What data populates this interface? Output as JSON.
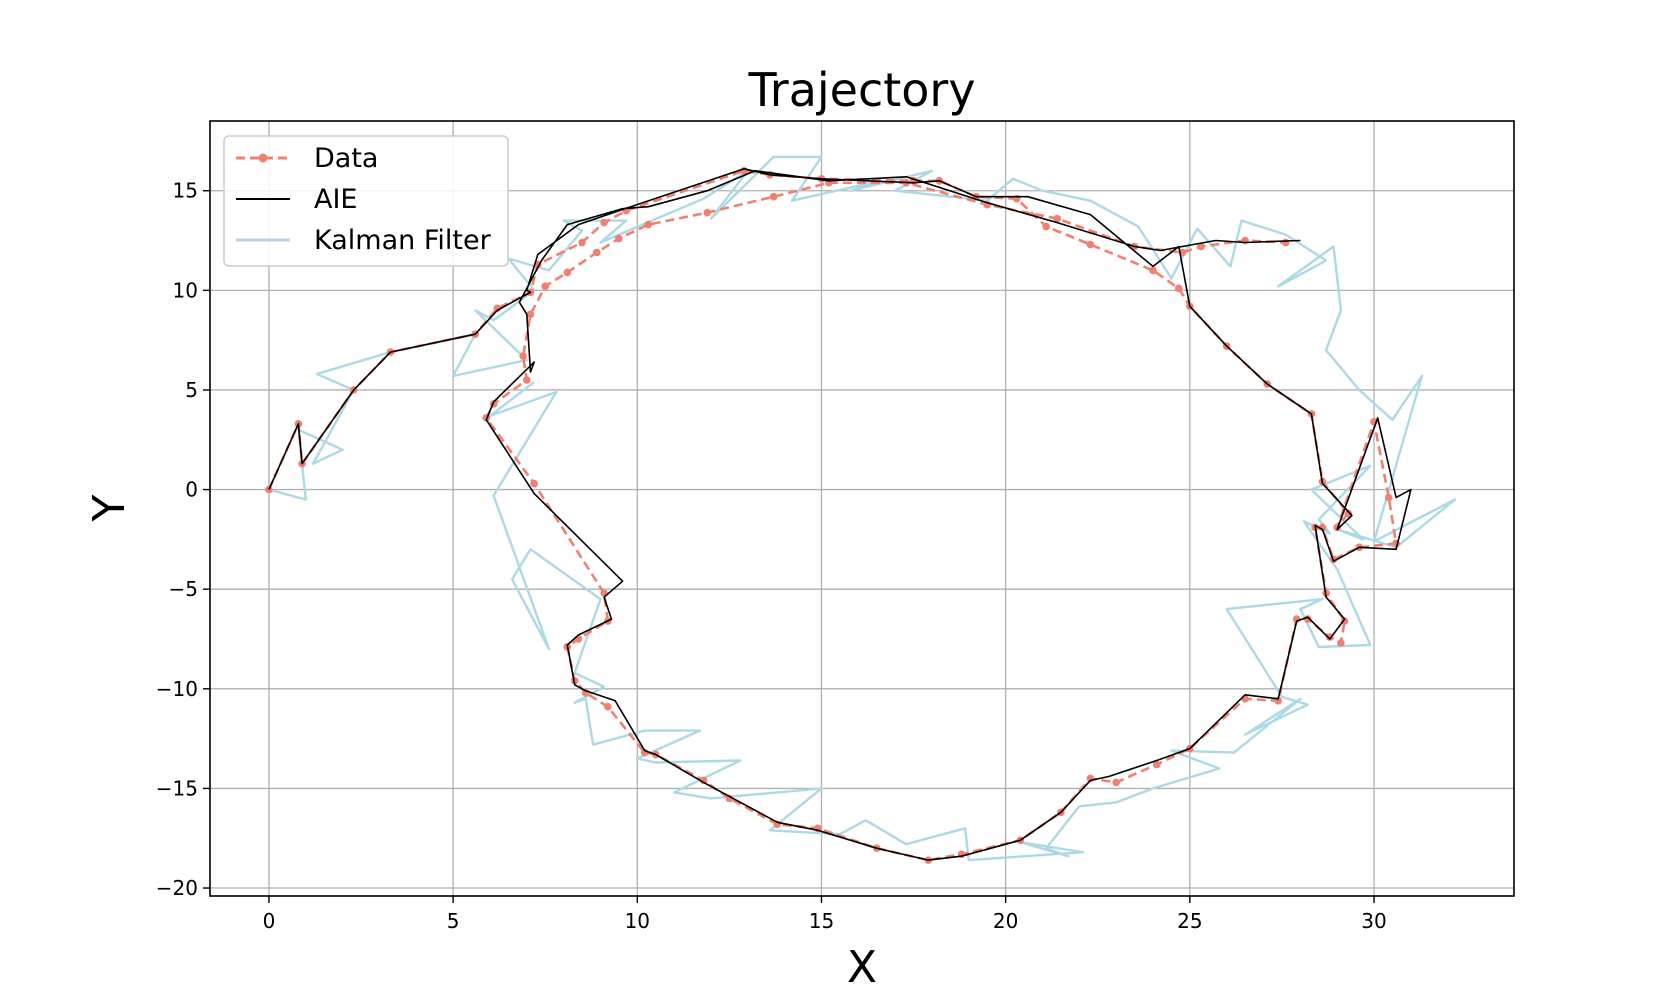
{
  "chart_data": {
    "type": "line",
    "title": "Trajectory",
    "xlabel": "X",
    "ylabel": "Y",
    "xlim": [
      -1.6,
      33.8
    ],
    "ylim": [
      -20.4,
      18.5
    ],
    "xticks": [
      0,
      5,
      10,
      15,
      20,
      25,
      30
    ],
    "yticks": [
      -20,
      -15,
      -10,
      -5,
      0,
      5,
      10,
      15
    ],
    "xtick_labels": [
      "0",
      "5",
      "10",
      "15",
      "20",
      "25",
      "30"
    ],
    "ytick_labels": [
      "−20",
      "−15",
      "−10",
      "−5",
      "0",
      "5",
      "10",
      "15"
    ],
    "grid": true,
    "legend_position": "top-left",
    "series": [
      {
        "name": "Data",
        "style": "dashed-with-markers",
        "color": "#f08070",
        "x": [
          0,
          0.8,
          0.9,
          2.3,
          3.3,
          5.6,
          6.2,
          7.1,
          7.3,
          8.5,
          9.1,
          9.7,
          12.9,
          13.6,
          15.0,
          17.5,
          18.2,
          19.2,
          20.3,
          21.1,
          22.3,
          24.0,
          24.7,
          25.0,
          26.0,
          27.1,
          28.3,
          28.6,
          29.3,
          29.0,
          30.0,
          30.4,
          30.6,
          29.6,
          28.9,
          28.6,
          28.4,
          28.7,
          29.2,
          29.1,
          28.8,
          28.2,
          27.9,
          27.4,
          26.5,
          25.0,
          24.1,
          23.0,
          22.3,
          21.5,
          20.4,
          18.8,
          17.9,
          16.5,
          14.9,
          13.8,
          12.5,
          11.8,
          10.5,
          10.2,
          9.2,
          8.6,
          8.3,
          8.1,
          8.4,
          9.2,
          9.1,
          7.2,
          5.9,
          6.1,
          7.0,
          6.9,
          7.1,
          7.5,
          8.1,
          8.9,
          9.5,
          10.3,
          11.9,
          13.7,
          15.2,
          17.3,
          19.5,
          21.4,
          23.5,
          24.8,
          25.3,
          26.5,
          27.6
        ],
        "y": [
          0,
          3.3,
          1.3,
          5.0,
          6.9,
          7.8,
          9.1,
          9.9,
          11.3,
          12.4,
          13.4,
          14.0,
          16.0,
          15.8,
          15.6,
          15.5,
          15.5,
          14.7,
          14.6,
          13.2,
          12.3,
          11.0,
          10.1,
          9.2,
          7.2,
          5.3,
          3.8,
          0.4,
          -1.2,
          -1.9,
          3.4,
          -0.4,
          -2.7,
          -2.9,
          -3.5,
          -1.9,
          -1.9,
          -5.2,
          -6.6,
          -7.7,
          -7.4,
          -6.5,
          -6.5,
          -10.6,
          -10.5,
          -13.0,
          -13.8,
          -14.7,
          -14.5,
          -16.2,
          -17.6,
          -18.3,
          -18.6,
          -18.0,
          -17.0,
          -16.8,
          -15.5,
          -14.6,
          -13.3,
          -13.2,
          -10.9,
          -10.2,
          -9.6,
          -7.9,
          -7.5,
          -6.6,
          -5.2,
          0.3,
          3.6,
          4.3,
          5.5,
          6.7,
          8.8,
          10.2,
          10.9,
          11.9,
          12.6,
          13.3,
          13.9,
          14.7,
          15.4,
          15.4,
          14.3,
          13.6,
          12.2,
          11.9,
          12.2,
          12.5,
          12.4
        ]
      },
      {
        "name": "AIE",
        "style": "solid",
        "color": "#000000",
        "x": [
          0,
          0.8,
          0.9,
          2.3,
          3.3,
          5.6,
          6.2,
          7.1,
          7.0,
          7.3,
          8.4,
          9.5,
          12.9,
          13.6,
          15.0,
          17.5,
          18.2,
          19.2,
          20.6,
          22.3,
          24.0,
          24.7,
          25.0,
          26.0,
          27.1,
          28.3,
          28.6,
          29.4,
          29.0,
          30.1,
          30.6,
          31.0,
          30.6,
          29.6,
          28.9,
          28.6,
          28.4,
          28.7,
          29.2,
          28.8,
          28.2,
          27.9,
          27.4,
          26.5,
          25.0,
          24.1,
          22.8,
          22.3,
          21.5,
          20.4,
          18.8,
          17.9,
          16.5,
          14.9,
          13.8,
          12.5,
          11.8,
          10.5,
          10.2,
          9.4,
          8.6,
          8.3,
          8.1,
          8.4,
          9.3,
          9.1,
          9.6,
          7.2,
          5.9,
          6.1,
          7.2,
          7.1,
          7.0,
          6.8,
          7.4,
          8.1,
          9.6,
          10.3,
          11.9,
          13.2,
          15.2,
          17.3,
          19.5,
          21.4,
          23.5,
          24.2,
          25.7,
          26.5,
          28.0
        ],
        "y": [
          0,
          3.3,
          1.3,
          5.0,
          6.9,
          7.8,
          9.0,
          9.9,
          10.0,
          11.8,
          13.3,
          14.0,
          16.1,
          15.8,
          15.6,
          15.4,
          15.5,
          14.7,
          14.7,
          13.8,
          11.2,
          12.2,
          9.2,
          7.2,
          5.3,
          3.8,
          0.3,
          -1.3,
          -2.0,
          3.6,
          -0.4,
          0.0,
          -3.0,
          -2.9,
          -3.6,
          -2.0,
          -1.8,
          -5.4,
          -6.5,
          -7.5,
          -6.4,
          -6.6,
          -10.5,
          -10.3,
          -13.0,
          -13.6,
          -14.4,
          -14.6,
          -16.2,
          -17.6,
          -18.4,
          -18.6,
          -18.0,
          -17.1,
          -16.7,
          -15.4,
          -14.7,
          -13.3,
          -13.1,
          -10.6,
          -10.1,
          -9.8,
          -7.8,
          -7.3,
          -6.5,
          -5.4,
          -4.6,
          -0.2,
          3.5,
          4.4,
          6.4,
          5.9,
          8.8,
          9.4,
          11.5,
          13.3,
          14.1,
          14.2,
          15.0,
          16.0,
          15.5,
          15.7,
          14.4,
          13.4,
          12.2,
          12.0,
          12.5,
          12.4,
          12.5
        ]
      },
      {
        "name": "Kalman Filter",
        "style": "solid",
        "color": "#add8e6",
        "x": [
          0,
          1.0,
          0.8,
          2.0,
          1.2,
          2.3,
          1.3,
          3.3,
          5.6,
          5.0,
          7.0,
          5.6,
          6.1,
          7.2,
          6.5,
          7.6,
          8.5,
          8.0,
          9.7,
          9.0,
          11.8,
          13.0,
          12.0,
          13.7,
          15.0,
          14.2,
          16.6,
          15.8,
          18.0,
          17.0,
          19.5,
          20.2,
          21.0,
          22.3,
          23.6,
          24.5,
          25.2,
          26.1,
          26.4,
          27.6,
          28.7,
          27.4,
          28.9,
          29.1,
          28.7,
          29.6,
          30.5,
          31.3,
          30.0,
          32.2,
          30.6,
          29.0,
          29.7,
          28.3,
          29.9,
          28.5,
          28.8,
          28.1,
          29.0,
          29.9,
          28.5,
          28.0,
          28.6,
          26.0,
          27.5,
          28.2,
          26.5,
          28.0,
          26.2,
          24.5,
          25.8,
          24.0,
          23.0,
          22.0,
          21.1,
          21.7,
          20.4,
          22.1,
          19.0,
          18.9,
          17.3,
          16.2,
          15.5,
          13.6,
          15.0,
          12.0,
          11.0,
          12.8,
          10.5,
          10.0,
          11.7,
          10.2,
          8.8,
          8.6,
          8.3,
          9.1,
          8.3,
          9.0,
          7.1,
          6.6,
          7.6,
          6.1,
          7.8,
          6.0,
          7.2
        ],
        "y": [
          0,
          -0.5,
          3.0,
          2.0,
          1.3,
          5.0,
          5.8,
          6.9,
          7.8,
          5.7,
          6.5,
          9.0,
          8.5,
          10.0,
          11.6,
          11.0,
          13.0,
          13.5,
          13.5,
          12.4,
          14.6,
          16.0,
          13.6,
          16.7,
          16.7,
          14.5,
          15.5,
          15.0,
          16.0,
          15.0,
          14.5,
          15.6,
          15.0,
          14.5,
          13.2,
          10.6,
          13.1,
          11.2,
          13.5,
          12.8,
          11.5,
          10.2,
          12.2,
          9.0,
          7.0,
          5.0,
          3.5,
          5.7,
          -2.6,
          -0.5,
          -2.9,
          -2.0,
          -2.5,
          0.0,
          1.2,
          -1.5,
          -2.2,
          -1.6,
          -4.0,
          -7.8,
          -7.9,
          -6.0,
          -5.5,
          -6.0,
          -10.4,
          -10.8,
          -12.3,
          -10.5,
          -13.2,
          -13.1,
          -14.0,
          -15.0,
          -15.7,
          -15.9,
          -18.0,
          -18.4,
          -17.7,
          -18.2,
          -18.6,
          -17.0,
          -17.8,
          -16.6,
          -17.3,
          -17.1,
          -15.0,
          -15.5,
          -15.2,
          -13.6,
          -13.7,
          -13.5,
          -12.1,
          -12.1,
          -12.8,
          -10.5,
          -10.7,
          -9.9,
          -9.2,
          -5.5,
          -3.0,
          -4.5,
          -8.0,
          -0.3,
          4.9,
          3.7,
          5.4
        ]
      }
    ]
  }
}
